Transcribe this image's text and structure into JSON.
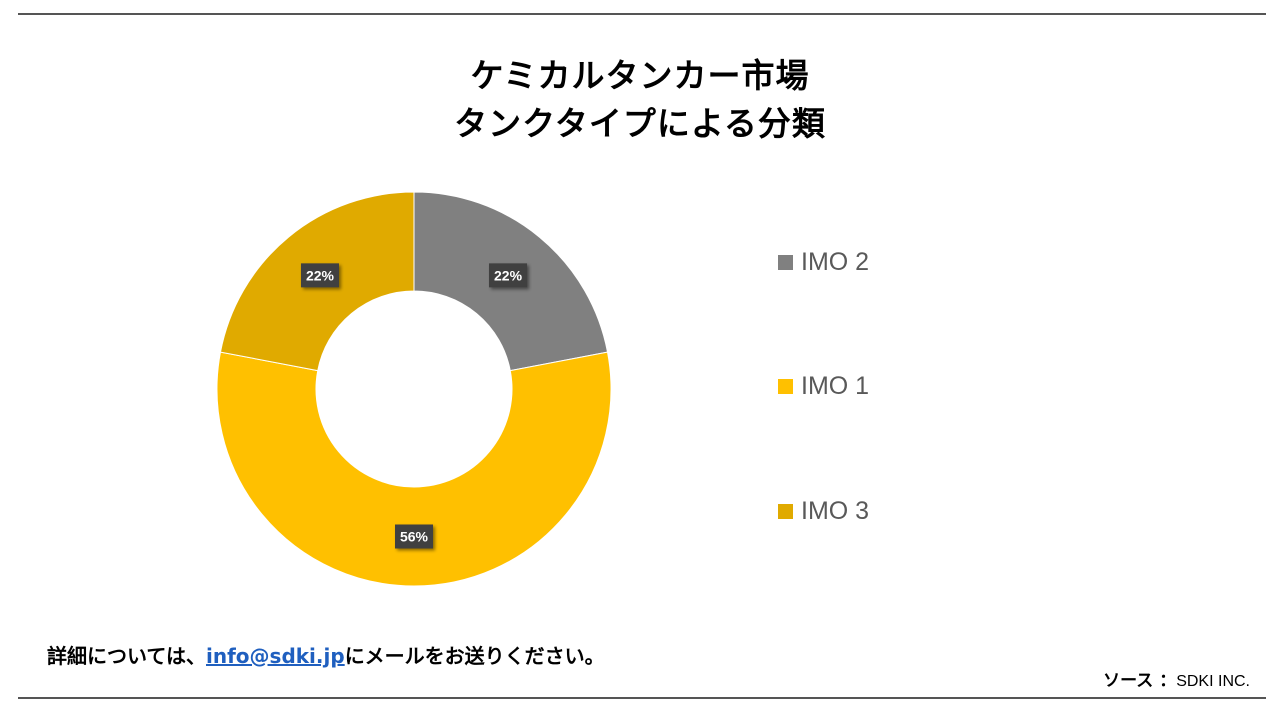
{
  "title": {
    "line1": "ケミカルタンカー市場",
    "line2": "タンクタイプによる分類"
  },
  "chart_data": {
    "type": "pie",
    "variant": "donut",
    "categories": [
      "IMO 2",
      "IMO 1",
      "IMO 3"
    ],
    "values": [
      22,
      56,
      22
    ],
    "labels": [
      "22%",
      "56%",
      "22%"
    ],
    "colors": [
      "#808080",
      "#FFC000",
      "#E0AA00"
    ],
    "legend_position": "right"
  },
  "footer": {
    "prefix": "詳細については、",
    "email": "info@sdki.jp",
    "suffix": "にメールをお送りください。"
  },
  "source": {
    "label": "ソース ：",
    "value": "SDKI INC."
  }
}
